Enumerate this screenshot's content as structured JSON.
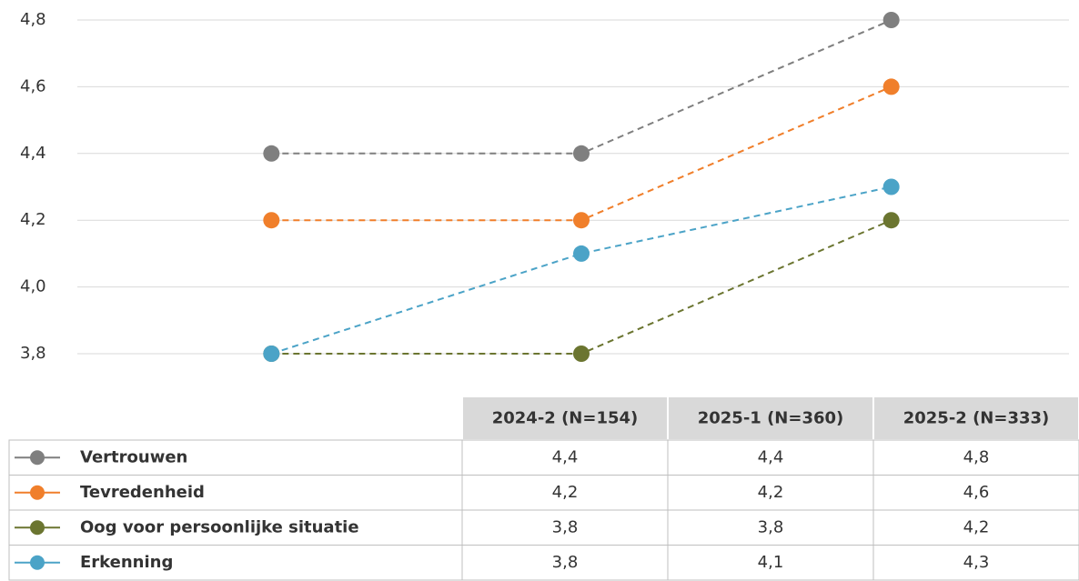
{
  "chart_data": {
    "type": "line",
    "categories": [
      "2024-2 (N=154)",
      "2025-1 (N=360)",
      "2025-2 (N=333)"
    ],
    "series": [
      {
        "name": "Vertrouwen",
        "color": "#7f7f7f",
        "values": [
          4.4,
          4.4,
          4.8
        ],
        "value_labels": [
          "4,4",
          "4,4",
          "4,8"
        ]
      },
      {
        "name": "Tevredenheid",
        "color": "#f07f2b",
        "values": [
          4.2,
          4.2,
          4.6
        ],
        "value_labels": [
          "4,2",
          "4,2",
          "4,6"
        ]
      },
      {
        "name": "Oog voor persoonlijke situatie",
        "color": "#6b7530",
        "values": [
          3.8,
          3.8,
          4.2
        ],
        "value_labels": [
          "3,8",
          "3,8",
          "4,2"
        ]
      },
      {
        "name": "Erkenning",
        "color": "#4ba3c7",
        "values": [
          3.8,
          4.1,
          4.3
        ],
        "value_labels": [
          "3,8",
          "4,1",
          "4,3"
        ]
      }
    ],
    "ylim": [
      3.8,
      4.8
    ],
    "yticks": [
      {
        "value": 3.8,
        "label": "3,8"
      },
      {
        "value": 4.0,
        "label": "4,0"
      },
      {
        "value": 4.2,
        "label": "4,2"
      },
      {
        "value": 4.4,
        "label": "4,4"
      },
      {
        "value": 4.6,
        "label": "4,6"
      },
      {
        "value": 4.8,
        "label": "4,8"
      }
    ],
    "grid": true
  }
}
